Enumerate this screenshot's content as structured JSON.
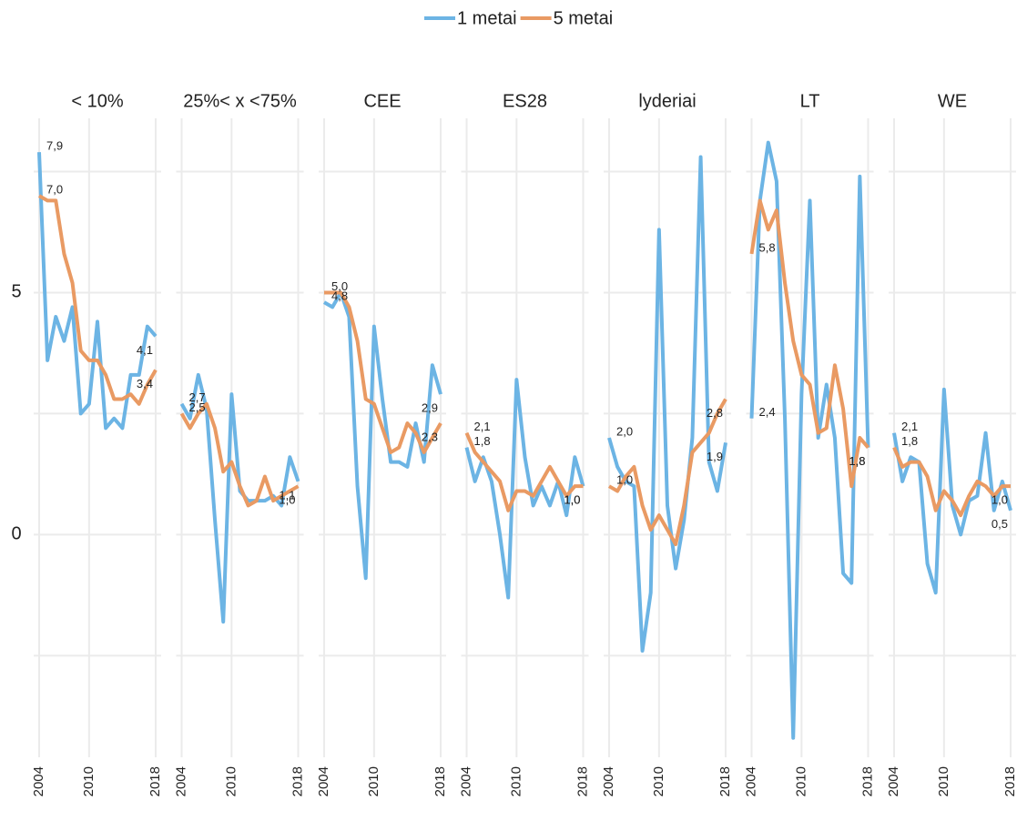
{
  "chart_data": {
    "type": "line",
    "legend": "top",
    "grid": true,
    "x": [
      2004,
      2005,
      2006,
      2007,
      2008,
      2009,
      2010,
      2011,
      2012,
      2013,
      2014,
      2015,
      2016,
      2017,
      2018
    ],
    "xticks": [
      2004,
      2010,
      2018
    ],
    "ylim": [
      -4.6,
      8.6
    ],
    "yticks": [
      0,
      5
    ],
    "minor_grid_y": [
      -2.5,
      2.5,
      7.5
    ],
    "series": [
      {
        "name": "1 metai",
        "color": "#6cb4e4"
      },
      {
        "name": "5 metai",
        "color": "#e99a63"
      }
    ],
    "facets": [
      {
        "title": "< 10%",
        "values": [
          [
            7.9,
            3.6,
            4.5,
            4.0,
            4.7,
            2.5,
            2.7,
            4.4,
            2.2,
            2.4,
            2.2,
            3.3,
            3.3,
            4.3,
            4.1
          ],
          [
            7.0,
            6.9,
            6.9,
            5.8,
            5.2,
            3.8,
            3.6,
            3.6,
            3.3,
            2.8,
            2.8,
            2.9,
            2.7,
            3.1,
            3.4
          ]
        ],
        "value_labels": [
          [
            "7,9",
            null,
            null,
            null,
            null,
            null,
            null,
            null,
            null,
            null,
            null,
            null,
            null,
            null,
            "4,1"
          ],
          [
            "7,0",
            null,
            null,
            null,
            null,
            null,
            null,
            null,
            null,
            null,
            null,
            null,
            null,
            null,
            "3,4"
          ]
        ]
      },
      {
        "title": "25%< x <75%",
        "values": [
          [
            2.7,
            2.4,
            3.3,
            2.6,
            0.3,
            -1.8,
            2.9,
            0.9,
            0.7,
            0.7,
            0.7,
            0.8,
            0.6,
            1.6,
            1.1
          ],
          [
            2.5,
            2.2,
            2.5,
            2.7,
            2.2,
            1.3,
            1.5,
            1.0,
            0.6,
            0.7,
            1.2,
            0.7,
            0.8,
            0.9,
            1.0
          ]
        ],
        "value_labels": [
          [
            "2,7",
            null,
            null,
            null,
            null,
            null,
            null,
            null,
            null,
            null,
            null,
            null,
            null,
            null,
            "1,1"
          ],
          [
            "2,5",
            null,
            null,
            null,
            null,
            null,
            null,
            null,
            null,
            null,
            null,
            null,
            null,
            null,
            "1,0"
          ]
        ]
      },
      {
        "title": "CEE",
        "values": [
          [
            4.8,
            4.7,
            5.0,
            4.5,
            1.0,
            -0.9,
            4.3,
            2.8,
            1.5,
            1.5,
            1.4,
            2.3,
            1.5,
            3.5,
            2.9
          ],
          [
            5.0,
            5.0,
            5.0,
            4.7,
            4.0,
            2.8,
            2.7,
            2.2,
            1.7,
            1.8,
            2.3,
            2.1,
            1.7,
            2.0,
            2.3
          ]
        ],
        "value_labels": [
          [
            "4,8",
            null,
            null,
            null,
            null,
            null,
            null,
            null,
            null,
            null,
            null,
            null,
            null,
            null,
            "2,9"
          ],
          [
            "5,0",
            null,
            null,
            null,
            null,
            null,
            null,
            null,
            null,
            null,
            null,
            null,
            null,
            null,
            "2,3"
          ]
        ]
      },
      {
        "title": "ES28",
        "values": [
          [
            1.8,
            1.1,
            1.6,
            1.1,
            0.0,
            -1.3,
            3.2,
            1.6,
            0.6,
            1.0,
            0.6,
            1.1,
            0.4,
            1.6,
            1.0
          ],
          [
            2.1,
            1.7,
            1.5,
            1.3,
            1.1,
            0.5,
            0.9,
            0.9,
            0.8,
            1.1,
            1.4,
            1.1,
            0.8,
            1.0,
            1.0
          ]
        ],
        "value_labels": [
          [
            "1,8",
            null,
            null,
            null,
            null,
            null,
            null,
            null,
            null,
            null,
            null,
            null,
            null,
            null,
            "1,0"
          ],
          [
            "2,1",
            null,
            null,
            null,
            null,
            null,
            null,
            null,
            null,
            null,
            null,
            null,
            null,
            null,
            "1,0"
          ]
        ]
      },
      {
        "title": "lyderiai",
        "values": [
          [
            2.0,
            1.4,
            1.1,
            1.0,
            -2.4,
            -1.2,
            6.3,
            0.6,
            -0.7,
            0.3,
            2.0,
            7.8,
            1.5,
            0.9,
            1.9
          ],
          [
            1.0,
            0.9,
            1.2,
            1.4,
            0.6,
            0.1,
            0.4,
            0.1,
            -0.2,
            0.6,
            1.7,
            1.9,
            2.1,
            2.5,
            2.8
          ]
        ],
        "value_labels": [
          [
            "2,0",
            null,
            null,
            null,
            null,
            null,
            null,
            null,
            null,
            null,
            null,
            null,
            null,
            null,
            "1,9"
          ],
          [
            "1,0",
            null,
            null,
            null,
            null,
            null,
            null,
            null,
            null,
            null,
            null,
            null,
            null,
            null,
            "2,8"
          ]
        ]
      },
      {
        "title": "LT",
        "values": [
          [
            2.4,
            6.9,
            8.1,
            7.3,
            2.4,
            -4.2,
            2.9,
            6.9,
            2.0,
            3.1,
            2.0,
            -0.8,
            -1.0,
            7.4,
            1.8
          ],
          [
            5.8,
            6.9,
            6.3,
            6.7,
            5.2,
            4.0,
            3.3,
            3.1,
            2.1,
            2.2,
            3.5,
            2.6,
            1.0,
            2.0,
            1.8
          ]
        ],
        "value_labels": [
          [
            "2,4",
            null,
            null,
            null,
            null,
            null,
            null,
            null,
            null,
            null,
            null,
            null,
            null,
            null,
            "1,8"
          ],
          [
            "5,8",
            null,
            null,
            null,
            null,
            null,
            null,
            null,
            null,
            null,
            null,
            null,
            null,
            null,
            "1,8"
          ]
        ]
      },
      {
        "title": "WE",
        "values": [
          [
            2.1,
            1.1,
            1.6,
            1.5,
            -0.6,
            -1.2,
            3.0,
            0.6,
            0.0,
            0.7,
            0.8,
            2.1,
            0.5,
            1.1,
            0.5
          ],
          [
            1.8,
            1.4,
            1.5,
            1.5,
            1.2,
            0.5,
            0.9,
            0.7,
            0.4,
            0.8,
            1.1,
            1.0,
            0.8,
            1.0,
            1.0
          ]
        ],
        "value_labels": [
          [
            "2,1",
            null,
            null,
            null,
            null,
            null,
            null,
            null,
            null,
            null,
            null,
            null,
            null,
            null,
            "0,5"
          ],
          [
            "1,8",
            null,
            null,
            null,
            null,
            null,
            null,
            null,
            null,
            null,
            null,
            null,
            null,
            null,
            "1,0"
          ]
        ]
      }
    ]
  }
}
